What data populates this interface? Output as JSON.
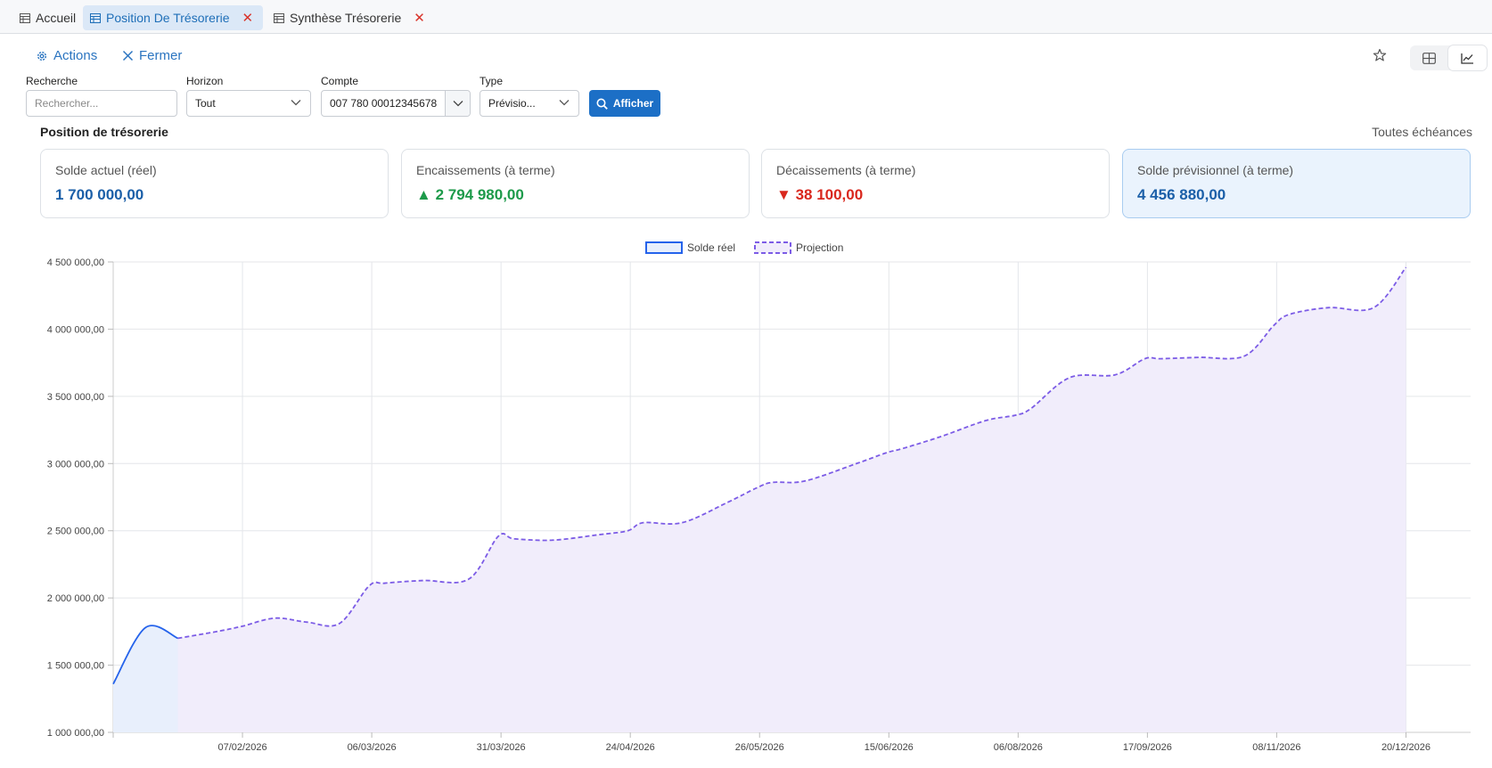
{
  "tabs": [
    {
      "label": "Accueil",
      "active": false,
      "closable": false
    },
    {
      "label": "Position De Trésorerie",
      "active": true,
      "closable": true
    },
    {
      "label": "Synthèse Trésorerie",
      "active": false,
      "closable": true
    }
  ],
  "toolbar": {
    "actions_label": "Actions",
    "close_label": "Fermer"
  },
  "filters": {
    "search": {
      "label": "Recherche",
      "placeholder": "Rechercher..."
    },
    "horizon": {
      "label": "Horizon",
      "value": "Tout"
    },
    "account": {
      "label": "Compte",
      "value": "007 780 00012345678"
    },
    "type": {
      "label": "Type",
      "value": "Prévisio..."
    },
    "submit_label": "Afficher"
  },
  "section": {
    "title": "Position de trésorerie",
    "scope": "Toutes échéances"
  },
  "kpis": [
    {
      "label": "Solde actuel (réel)",
      "value": "1 700 000,00",
      "tone": "blue",
      "arrow": ""
    },
    {
      "label": "Encaissements (à terme)",
      "value": "2 794 980,00",
      "tone": "green",
      "arrow": "▲"
    },
    {
      "label": "Décaissements (à terme)",
      "value": "38 100,00",
      "tone": "red",
      "arrow": "▼"
    },
    {
      "label": "Solde prévisionnel (à terme)",
      "value": "4 456 880,00",
      "tone": "blue",
      "arrow": ""
    }
  ],
  "colors": {
    "real": "#2563eb",
    "projection": "#7c5ce6",
    "accent": "#1c6fc6"
  },
  "chart_data": {
    "type": "line",
    "ylim": [
      1000000,
      4500000
    ],
    "y_ticks": [
      "1 000 000,00",
      "1 500 000,00",
      "2 000 000,00",
      "2 500 000,00",
      "3 000 000,00",
      "3 500 000,00",
      "4 000 000,00",
      "4 500 000,00"
    ],
    "x_ticks": [
      "07/02/2026",
      "06/03/2026",
      "31/03/2026",
      "24/04/2026",
      "26/05/2026",
      "15/06/2026",
      "06/08/2026",
      "17/09/2026",
      "08/11/2026",
      "20/12/2026"
    ],
    "grid": true,
    "legend_position": "top-center",
    "series": [
      {
        "name": "Solde réel",
        "style": "solid",
        "fill": "#e8effc",
        "x": [
          0,
          0.25,
          0.5
        ],
        "values": [
          1360000,
          1780000,
          1700000
        ]
      },
      {
        "name": "Projection",
        "style": "dashed",
        "fill": "#f1edfb",
        "x": [
          0.5,
          0.8,
          1,
          1.25,
          1.5,
          1.75,
          1.98,
          2.1,
          2.4,
          2.75,
          2.98,
          3.1,
          3.4,
          3.75,
          3.98,
          4.1,
          4.4,
          4.75,
          4.98,
          5.1,
          5.35,
          5.75,
          5.98,
          6.1,
          6.4,
          6.75,
          6.98,
          7.1,
          7.4,
          7.75,
          7.98,
          8.1,
          8.4,
          8.75,
          8.98,
          9.1,
          9.4,
          9.75,
          10
        ],
        "values": [
          1700000,
          1750000,
          1790000,
          1850000,
          1820000,
          1810000,
          2090000,
          2110000,
          2130000,
          2140000,
          2460000,
          2440000,
          2430000,
          2470000,
          2500000,
          2560000,
          2560000,
          2710000,
          2820000,
          2860000,
          2870000,
          3000000,
          3080000,
          3110000,
          3200000,
          3320000,
          3360000,
          3410000,
          3640000,
          3660000,
          3780000,
          3780000,
          3790000,
          3800000,
          4030000,
          4110000,
          4160000,
          4160000,
          4460000
        ]
      }
    ]
  }
}
